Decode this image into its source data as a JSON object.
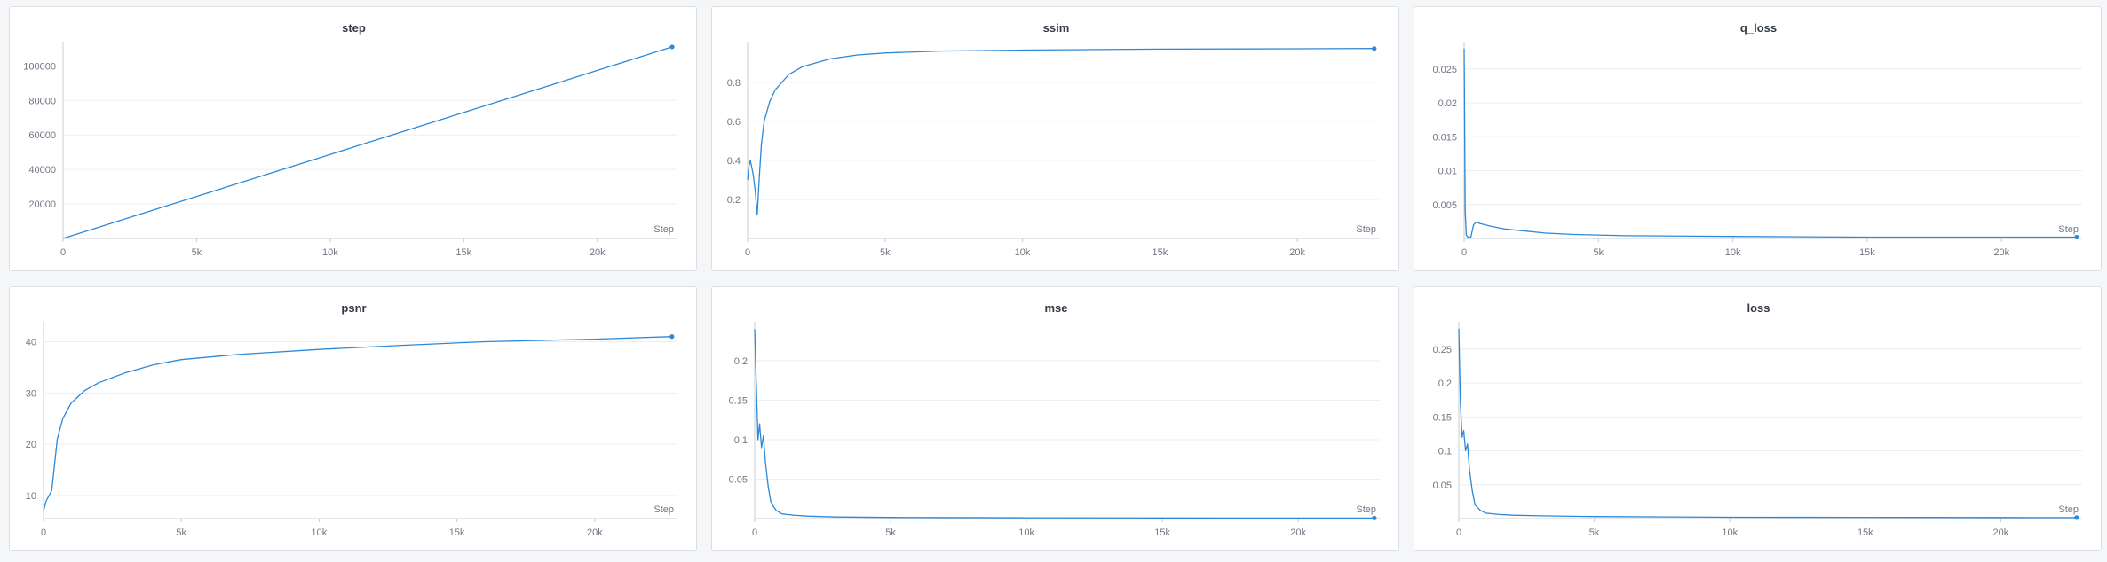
{
  "style": {
    "line_color": "#2d88d6",
    "grid_color": "#eceef1",
    "axis_color": "#c8ccd2"
  },
  "chart_data": [
    {
      "type": "line",
      "title": "step",
      "xlabel": "Step",
      "ylabel": "",
      "xlim": [
        0,
        23000
      ],
      "ylim": [
        0,
        112000
      ],
      "xticks": [
        0,
        5000,
        10000,
        15000,
        20000
      ],
      "xtick_labels": [
        "0",
        "5k",
        "10k",
        "15k",
        "20k"
      ],
      "yticks": [
        20000,
        40000,
        60000,
        80000,
        100000
      ],
      "ytick_labels": [
        "20000",
        "40000",
        "60000",
        "80000",
        "100000"
      ],
      "series": [
        {
          "x": [
            0,
            22800
          ],
          "y": [
            0,
            111000
          ]
        }
      ],
      "last_point": [
        22800,
        111000
      ]
    },
    {
      "type": "line",
      "title": "ssim",
      "xlabel": "Step",
      "ylabel": "",
      "xlim": [
        0,
        23000
      ],
      "ylim": [
        0,
        0.99
      ],
      "xticks": [
        0,
        5000,
        10000,
        15000,
        20000
      ],
      "xtick_labels": [
        "0",
        "5k",
        "10k",
        "15k",
        "20k"
      ],
      "yticks": [
        0.2,
        0.4,
        0.6,
        0.8
      ],
      "ytick_labels": [
        "0.2",
        "0.4",
        "0.6",
        "0.8"
      ],
      "series": [
        {
          "x": [
            0,
            50,
            100,
            200,
            280,
            350,
            420,
            500,
            600,
            800,
            1000,
            1500,
            2000,
            2500,
            3000,
            4000,
            5000,
            7000,
            10000,
            15000,
            20000,
            22800
          ],
          "y": [
            0.3,
            0.37,
            0.4,
            0.33,
            0.24,
            0.12,
            0.3,
            0.48,
            0.6,
            0.7,
            0.76,
            0.84,
            0.88,
            0.9,
            0.92,
            0.94,
            0.95,
            0.96,
            0.965,
            0.97,
            0.972,
            0.973
          ]
        }
      ],
      "last_point": [
        22800,
        0.973
      ]
    },
    {
      "type": "line",
      "title": "q_loss",
      "xlabel": "Step",
      "ylabel": "",
      "xlim": [
        0,
        23000
      ],
      "ylim": [
        0,
        0.0285
      ],
      "xticks": [
        0,
        5000,
        10000,
        15000,
        20000
      ],
      "xtick_labels": [
        "0",
        "5k",
        "10k",
        "15k",
        "20k"
      ],
      "yticks": [
        0.005,
        0.01,
        0.015,
        0.02,
        0.025
      ],
      "ytick_labels": [
        "0.005",
        "0.01",
        "0.015",
        "0.02",
        "0.025"
      ],
      "series": [
        {
          "x": [
            0,
            40,
            80,
            150,
            250,
            350,
            450,
            600,
            800,
            1000,
            1500,
            2000,
            3000,
            4000,
            6000,
            10000,
            15000,
            20000,
            22800
          ],
          "y": [
            0.028,
            0.004,
            0.0005,
            0.0002,
            0.0002,
            0.002,
            0.0024,
            0.0022,
            0.002,
            0.0018,
            0.0014,
            0.0012,
            0.0008,
            0.0006,
            0.0004,
            0.0003,
            0.0002,
            0.0002,
            0.0002
          ]
        }
      ],
      "last_point": [
        22800,
        0.0002
      ]
    },
    {
      "type": "line",
      "title": "psnr",
      "xlabel": "Step",
      "ylabel": "",
      "xlim": [
        0,
        23000
      ],
      "ylim": [
        5.5,
        43.2
      ],
      "xticks": [
        0,
        5000,
        10000,
        15000,
        20000
      ],
      "xtick_labels": [
        "0",
        "5k",
        "10k",
        "15k",
        "20k"
      ],
      "yticks": [
        10,
        20,
        30,
        40
      ],
      "ytick_labels": [
        "10",
        "20",
        "30",
        "40"
      ],
      "series": [
        {
          "x": [
            0,
            100,
            200,
            300,
            400,
            500,
            700,
            1000,
            1500,
            2000,
            3000,
            4000,
            5000,
            7000,
            10000,
            13000,
            16000,
            20000,
            22800
          ],
          "y": [
            7,
            9,
            10,
            11,
            16,
            21,
            25,
            28,
            30.5,
            32,
            34,
            35.5,
            36.5,
            37.5,
            38.5,
            39.3,
            40,
            40.5,
            41
          ]
        }
      ],
      "last_point": [
        22800,
        41
      ]
    },
    {
      "type": "line",
      "title": "mse",
      "xlabel": "Step",
      "ylabel": "",
      "xlim": [
        0,
        23000
      ],
      "ylim": [
        0,
        0.245
      ],
      "xticks": [
        0,
        5000,
        10000,
        15000,
        20000
      ],
      "xtick_labels": [
        "0",
        "5k",
        "10k",
        "15k",
        "20k"
      ],
      "yticks": [
        0.05,
        0.1,
        0.15,
        0.2
      ],
      "ytick_labels": [
        "0.05",
        "0.1",
        "0.15",
        "0.2"
      ],
      "series": [
        {
          "x": [
            0,
            60,
            120,
            180,
            250,
            320,
            400,
            500,
            600,
            800,
            1000,
            1500,
            2000,
            3000,
            5000,
            10000,
            15000,
            20000,
            22800
          ],
          "y": [
            0.24,
            0.17,
            0.1,
            0.12,
            0.09,
            0.105,
            0.07,
            0.04,
            0.02,
            0.01,
            0.006,
            0.004,
            0.003,
            0.002,
            0.0015,
            0.001,
            0.0008,
            0.0007,
            0.0007
          ]
        }
      ],
      "last_point": [
        22800,
        0.0007
      ]
    },
    {
      "type": "line",
      "title": "loss",
      "xlabel": "Step",
      "ylabel": "",
      "xlim": [
        0,
        23000
      ],
      "ylim": [
        0,
        0.285
      ],
      "xticks": [
        0,
        5000,
        10000,
        15000,
        20000
      ],
      "xtick_labels": [
        "0",
        "5k",
        "10k",
        "15k",
        "20k"
      ],
      "yticks": [
        0.05,
        0.1,
        0.15,
        0.2,
        0.25
      ],
      "ytick_labels": [
        "0.05",
        "0.1",
        "0.15",
        "0.2",
        "0.25"
      ],
      "series": [
        {
          "x": [
            0,
            60,
            120,
            180,
            250,
            320,
            400,
            500,
            600,
            800,
            1000,
            1500,
            2000,
            3000,
            5000,
            10000,
            15000,
            20000,
            22800
          ],
          "y": [
            0.28,
            0.17,
            0.12,
            0.13,
            0.1,
            0.11,
            0.07,
            0.04,
            0.02,
            0.012,
            0.008,
            0.006,
            0.005,
            0.004,
            0.003,
            0.002,
            0.0018,
            0.0016,
            0.0015
          ]
        }
      ],
      "last_point": [
        22800,
        0.0015
      ]
    }
  ]
}
